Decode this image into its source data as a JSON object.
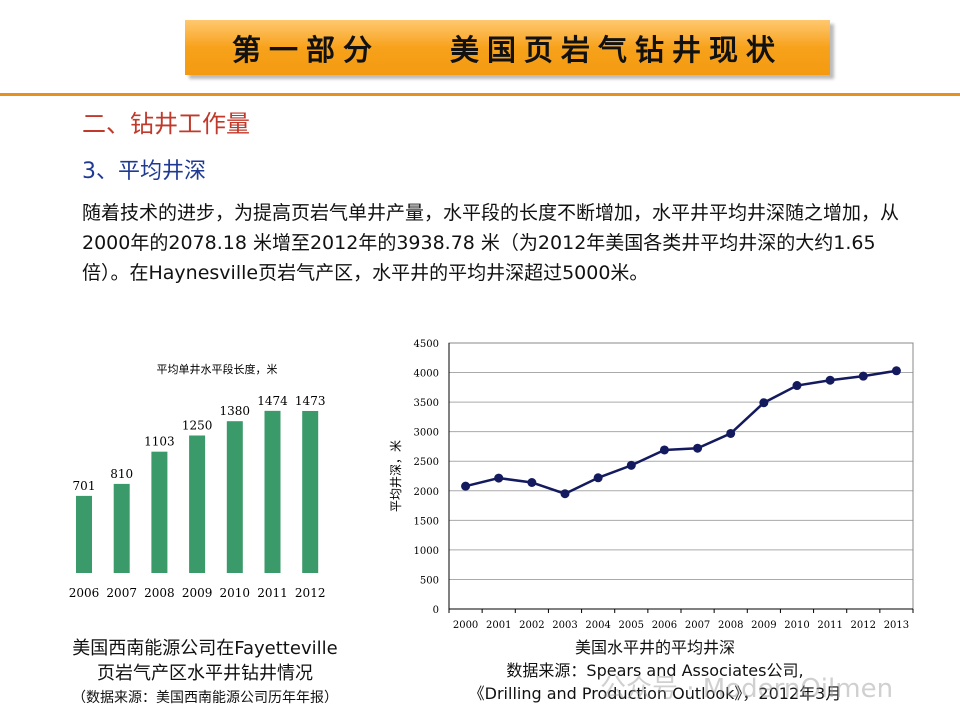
{
  "header": {
    "part": "第一部分",
    "title": "美国页岩气钻井现状"
  },
  "section": "二、钻井工作量",
  "subsection": "3、平均井深",
  "paragraph": "随着技术的进步，为提高页岩气单井产量，水平段的长度不断增加，水平井平均井深随之增加，从2000年的2078.18 米增至2012年的3938.78 米（为2012年美国各类井平均井深的大约1.65倍）。在Haynesville页岩气产区，水平井的平均井深超过5000米。",
  "left_caption": {
    "line1": "美国西南能源公司在Fayetteville",
    "line2": "页岩气产区水平井钻井情况",
    "line3": "（数据来源：美国西南能源公司历年年报）"
  },
  "right_caption": {
    "line1": "美国水平井的平均井深",
    "line2": "数据来源：Spears and Associates公司,",
    "line3": "《Drilling and Production Outlook》，2012年3月"
  },
  "watermark": "公众号 · ModernOilmen",
  "colors": {
    "bar": "#3a9a6a",
    "line": "#141a5e",
    "accent": "#e8901e"
  },
  "chart_data": [
    {
      "type": "bar",
      "title": "平均单井水平段长度，米",
      "categories": [
        "2006",
        "2007",
        "2008",
        "2009",
        "2010",
        "2011",
        "2012"
      ],
      "values": [
        701,
        810,
        1103,
        1250,
        1380,
        1474,
        1473
      ],
      "ylim": [
        0,
        1600
      ]
    },
    {
      "type": "line",
      "title": "美国水平井的平均井深",
      "ylabel": "平均井深，米",
      "x": [
        "2000",
        "2001",
        "2002",
        "2003",
        "2004",
        "2005",
        "2006",
        "2007",
        "2008",
        "2009",
        "2010",
        "2011",
        "2012",
        "2013"
      ],
      "values": [
        2078,
        2215,
        2140,
        1950,
        2220,
        2430,
        2690,
        2720,
        2970,
        3490,
        3780,
        3870,
        3939,
        4030
      ],
      "ylim": [
        0,
        4500
      ],
      "yticks": [
        0,
        500,
        1000,
        1500,
        2000,
        2500,
        3000,
        3500,
        4000,
        4500
      ],
      "grid": true
    }
  ]
}
